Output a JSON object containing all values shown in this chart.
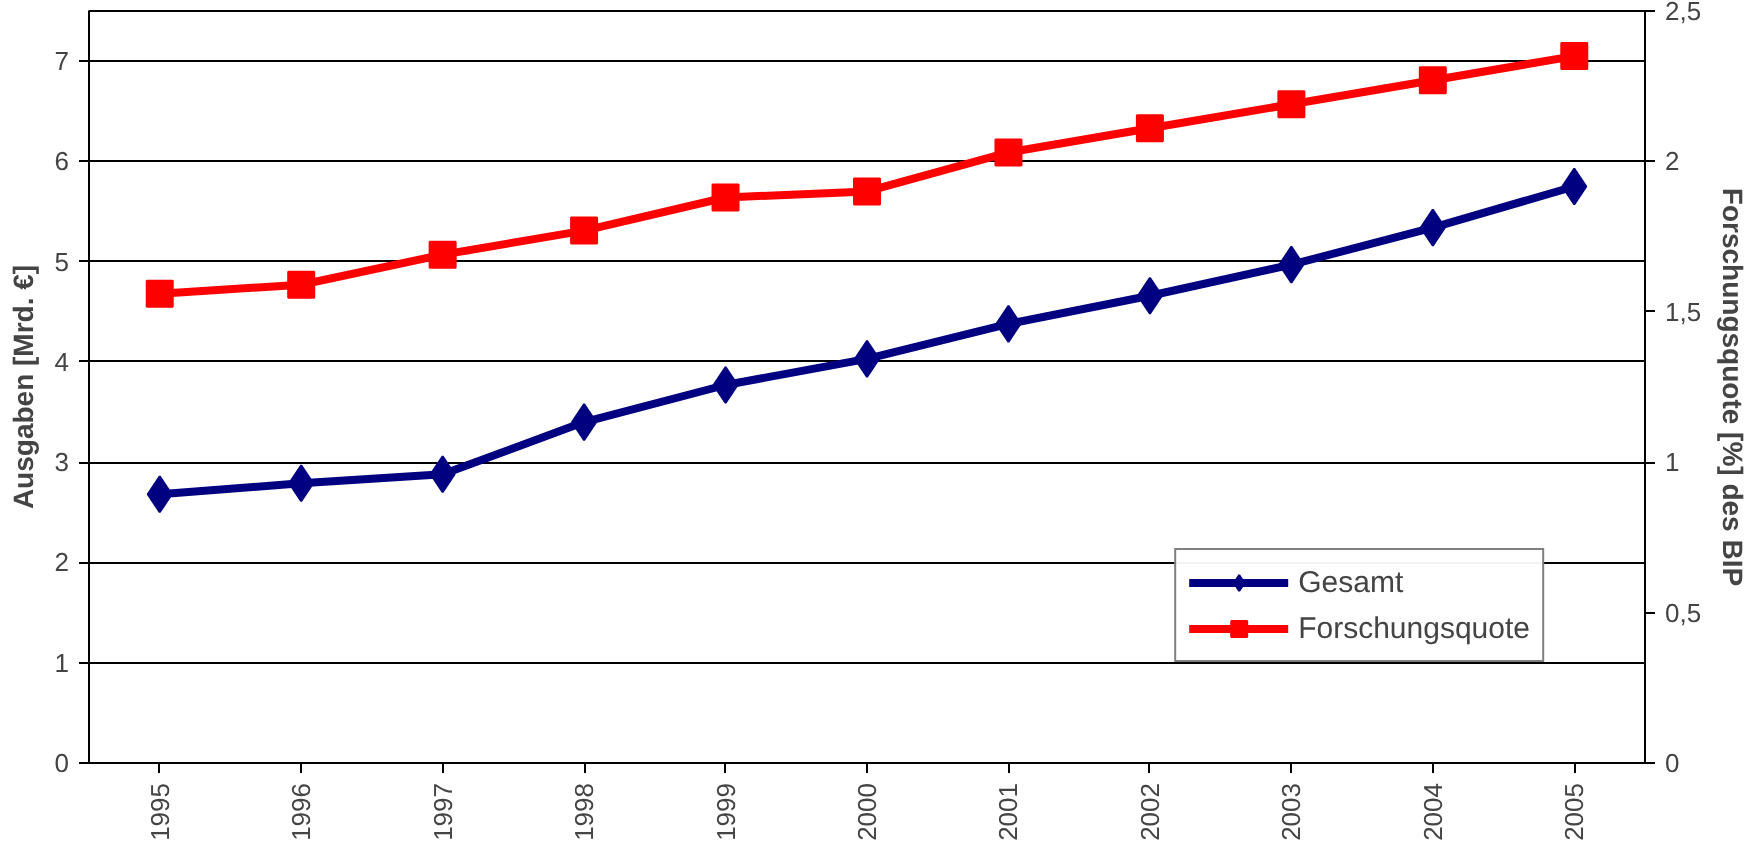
{
  "chart_data": {
    "type": "line",
    "ylabel": "Ausgaben [Mrd. €]",
    "y2label": "Forschungsquote [%] des BIP",
    "categories": [
      "1995",
      "1996",
      "1997",
      "1998",
      "1999",
      "2000",
      "2001",
      "2002",
      "2003",
      "2004",
      "2005"
    ],
    "series": [
      {
        "name": "Gesamt",
        "color": "#000080",
        "marker": "diamond",
        "values": [
          2.68,
          2.79,
          2.88,
          3.4,
          3.77,
          4.03,
          4.38,
          4.66,
          4.97,
          5.34,
          5.75
        ]
      },
      {
        "name": "Forschungsquote",
        "color": "#ff0000",
        "marker": "square",
        "axis": "y2",
        "values": [
          1.56,
          1.59,
          1.69,
          1.77,
          1.88,
          1.9,
          2.03,
          2.11,
          2.19,
          2.27,
          2.35
        ]
      }
    ],
    "ylim": [
      0,
      7.5
    ],
    "yticks": [
      0,
      1,
      2,
      3,
      4,
      5,
      6,
      7
    ],
    "y2lim": [
      0,
      2.5
    ],
    "y2ticks": [
      0,
      {
        "value": 0.5,
        "label": "0,5"
      },
      1,
      {
        "value": 1.5,
        "label": "1,5"
      },
      2,
      {
        "value": 2.5,
        "label": "2,5"
      }
    ],
    "grid": "y",
    "legend": "bottom right"
  }
}
